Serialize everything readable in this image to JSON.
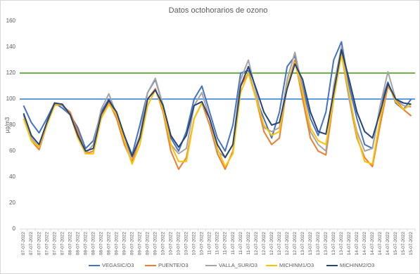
{
  "chart_data": {
    "type": "line",
    "title": "Datos octohorarios de ozono",
    "y_label": "µg/m3",
    "categories": [
      "07-07-2022",
      "07-07-2022",
      "07-07-2022",
      "07-07-2022",
      "07-07-2022",
      "07-07-2022",
      "08-07-2022",
      "08-07-2022",
      "08-07-2022",
      "08-07-2022",
      "08-07-2022",
      "08-07-2022",
      "09-07-2022",
      "09-07-2022",
      "09-07-2022",
      "09-07-2022",
      "09-07-2022",
      "09-07-2022",
      "10-07-2022",
      "10-07-2022",
      "10-07-2022",
      "10-07-2022",
      "10-07-2022",
      "10-07-2022",
      "11-07-2022",
      "11-07-2022",
      "11-07-2022",
      "11-07-2022",
      "11-07-2022",
      "11-07-2022",
      "12-07-2022",
      "12-07-2022",
      "12-07-2022",
      "12-07-2022",
      "12-07-2022",
      "12-07-2022",
      "13-07-2022",
      "13-07-2022",
      "13-07-2022",
      "13-07-2022",
      "13-07-2022",
      "13-07-2022",
      "14-07-2022",
      "14-07-2022",
      "14-07-2022",
      "14-07-2022",
      "14-07-2022",
      "14-07-2022",
      "15-07-2022",
      "15-07-2022",
      "15-07-2022"
    ],
    "series": [
      {
        "name": "VEGASIC/O3",
        "color": "#4472c4",
        "values": [
          95,
          82,
          74,
          85,
          97,
          93,
          88,
          78,
          62,
          68,
          90,
          100,
          88,
          72,
          57,
          80,
          105,
          115,
          95,
          70,
          60,
          75,
          100,
          110,
          90,
          70,
          60,
          80,
          120,
          122,
          100,
          85,
          70,
          90,
          125,
          133,
          110,
          85,
          72,
          90,
          130,
          144,
          110,
          85,
          65,
          62,
          95,
          113,
          97,
          92,
          100
        ]
      },
      {
        "name": "PUENTE/O3",
        "color": "#ed7d31",
        "values": [
          88,
          68,
          61,
          80,
          96,
          95,
          90,
          75,
          58,
          60,
          85,
          98,
          85,
          65,
          52,
          70,
          100,
          108,
          90,
          60,
          46,
          55,
          85,
          97,
          80,
          58,
          46,
          60,
          110,
          120,
          100,
          75,
          65,
          70,
          110,
          130,
          100,
          70,
          60,
          57,
          100,
          135,
          100,
          70,
          55,
          48,
          80,
          110,
          100,
          92,
          87
        ]
      },
      {
        "name": "VALLA_SUR/O3",
        "color": "#a5a5a5",
        "values": [
          88,
          70,
          63,
          82,
          97,
          95,
          88,
          72,
          58,
          65,
          92,
          104,
          88,
          68,
          55,
          72,
          105,
          116,
          95,
          65,
          58,
          62,
          95,
          105,
          85,
          60,
          55,
          65,
          115,
          130,
          105,
          78,
          75,
          78,
          115,
          136,
          108,
          75,
          65,
          60,
          110,
          140,
          100,
          75,
          60,
          62,
          95,
          121,
          100,
          95,
          94
        ]
      },
      {
        "name": "MICHINM1/O3",
        "color": "#ffc000",
        "values": [
          85,
          68,
          63,
          80,
          95,
          96,
          88,
          70,
          58,
          58,
          85,
          96,
          88,
          68,
          50,
          65,
          95,
          107,
          92,
          65,
          52,
          52,
          85,
          97,
          85,
          62,
          48,
          58,
          105,
          120,
          100,
          80,
          72,
          75,
          110,
          128,
          105,
          78,
          68,
          65,
          100,
          134,
          105,
          72,
          52,
          50,
          85,
          112,
          98,
          92,
          96
        ]
      },
      {
        "name": "MICHINM2/O3",
        "color": "#264478",
        "values": [
          89,
          72,
          65,
          82,
          97,
          96,
          88,
          72,
          60,
          62,
          88,
          99,
          90,
          72,
          56,
          70,
          100,
          107,
          95,
          72,
          63,
          72,
          95,
          98,
          85,
          65,
          55,
          65,
          110,
          125,
          108,
          90,
          80,
          82,
          108,
          127,
          115,
          90,
          75,
          73,
          105,
          138,
          115,
          90,
          75,
          70,
          90,
          112,
          100,
          97,
          96
        ]
      }
    ],
    "reference_lines": [
      {
        "value": 100,
        "color": "#4a8fd9"
      },
      {
        "value": 120,
        "color": "#5aa832"
      }
    ],
    "ylim": [
      0,
      160
    ],
    "yticks": [
      0,
      20,
      40,
      60,
      80,
      100,
      120,
      140,
      160
    ],
    "grid": false,
    "legend": "bottom"
  }
}
